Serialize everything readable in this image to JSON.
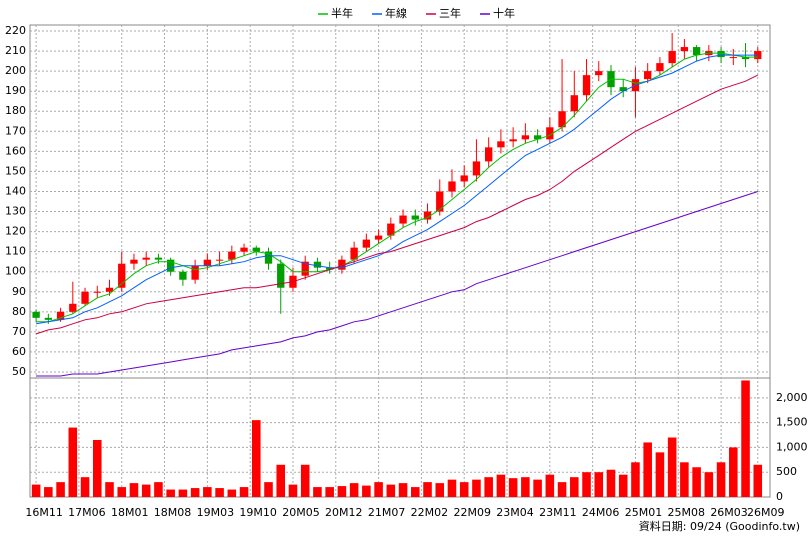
{
  "chart_data": [
    {
      "type": "candlestick",
      "x": [
        0,
        2,
        4,
        6,
        8,
        10,
        12,
        14,
        16,
        18,
        20,
        22,
        24,
        26,
        28,
        30,
        32,
        34,
        36,
        38,
        40,
        42,
        44,
        46,
        48,
        50,
        52,
        54,
        56,
        58,
        60,
        62,
        64,
        66,
        68,
        70,
        72,
        74,
        76,
        78,
        80,
        82,
        84,
        86,
        88,
        90,
        92,
        94,
        96,
        98,
        100,
        102,
        104,
        106,
        108,
        110,
        112,
        114,
        116,
        118
      ],
      "open": [
        80,
        77,
        76,
        80,
        84,
        90,
        90,
        92,
        104,
        106,
        107,
        106,
        100,
        96,
        103,
        106,
        106,
        110,
        112,
        110,
        104,
        92,
        98,
        105,
        102,
        101,
        106,
        112,
        116,
        118,
        124,
        128,
        126,
        130,
        140,
        145,
        148,
        155,
        162,
        165,
        166,
        168,
        166,
        172,
        180,
        188,
        198,
        200,
        192,
        190,
        196,
        200,
        204,
        210,
        212,
        208,
        210,
        207,
        207,
        206
      ],
      "high": [
        81,
        79,
        82,
        95,
        92,
        93,
        96,
        110,
        109,
        110,
        109,
        107,
        101,
        106,
        109,
        110,
        113,
        114,
        113,
        112,
        106,
        102,
        108,
        107,
        105,
        108,
        115,
        119,
        121,
        127,
        131,
        131,
        134,
        146,
        151,
        153,
        166,
        167,
        171,
        172,
        174,
        171,
        177,
        206,
        200,
        206,
        205,
        203,
        196,
        202,
        204,
        207,
        219,
        216,
        213,
        213,
        212,
        211,
        214,
        212
      ],
      "low": [
        75,
        74,
        75,
        79,
        83,
        87,
        88,
        90,
        101,
        103,
        104,
        98,
        93,
        94,
        101,
        103,
        104,
        108,
        108,
        101,
        79,
        90,
        96,
        100,
        99,
        99,
        104,
        110,
        114,
        116,
        122,
        123,
        124,
        128,
        137,
        142,
        145,
        152,
        159,
        162,
        164,
        164,
        164,
        170,
        177,
        185,
        195,
        188,
        187,
        177,
        194,
        198,
        202,
        206,
        205,
        205,
        204,
        203,
        202,
        204
      ],
      "close": [
        77,
        76,
        80,
        84,
        90,
        90,
        92,
        104,
        106,
        107,
        106,
        100,
        96,
        103,
        106,
        106,
        110,
        112,
        110,
        104,
        92,
        98,
        105,
        102,
        101,
        106,
        112,
        116,
        118,
        124,
        128,
        126,
        130,
        140,
        145,
        148,
        155,
        162,
        165,
        166,
        168,
        166,
        172,
        180,
        188,
        198,
        200,
        192,
        190,
        196,
        200,
        204,
        210,
        212,
        208,
        210,
        207,
        207,
        206,
        210
      ],
      "up_color": "#ff0000",
      "down_color": "#00a000",
      "series": [
        {
          "name": "半年",
          "color": "#00c000",
          "values": [
            75,
            75,
            77,
            79,
            83,
            87,
            89,
            94,
            99,
            103,
            105,
            105,
            103,
            101,
            102,
            104,
            106,
            108,
            110,
            109,
            105,
            100,
            100,
            100,
            101,
            103,
            106,
            110,
            114,
            118,
            122,
            125,
            127,
            131,
            136,
            141,
            146,
            152,
            157,
            161,
            164,
            166,
            168,
            172,
            178,
            185,
            192,
            196,
            196,
            194,
            195,
            198,
            202,
            206,
            208,
            209,
            209,
            208,
            207,
            207
          ]
        },
        {
          "name": "年線",
          "color": "#0060ff",
          "values": [
            74,
            75,
            76,
            77,
            80,
            82,
            85,
            88,
            92,
            96,
            99,
            102,
            103,
            103,
            103,
            103,
            104,
            105,
            107,
            108,
            108,
            106,
            104,
            103,
            102,
            102,
            104,
            106,
            108,
            111,
            115,
            118,
            121,
            125,
            129,
            133,
            138,
            143,
            148,
            153,
            158,
            161,
            164,
            167,
            171,
            176,
            181,
            186,
            190,
            193,
            195,
            197,
            199,
            202,
            205,
            207,
            208,
            208,
            208,
            208
          ]
        },
        {
          "name": "三年",
          "color": "#cc0044",
          "values": [
            69,
            71,
            72,
            74,
            76,
            77,
            79,
            80,
            82,
            84,
            85,
            86,
            87,
            88,
            89,
            90,
            91,
            92,
            92,
            93,
            94,
            95,
            97,
            99,
            101,
            103,
            105,
            107,
            109,
            110,
            112,
            114,
            116,
            118,
            120,
            122,
            125,
            127,
            130,
            133,
            136,
            138,
            141,
            145,
            150,
            154,
            158,
            162,
            166,
            170,
            173,
            176,
            179,
            182,
            185,
            188,
            191,
            193,
            195,
            198
          ]
        },
        {
          "name": "十年",
          "color": "#6600cc",
          "values": [
            48,
            48,
            48,
            49,
            49,
            49,
            50,
            51,
            52,
            53,
            54,
            55,
            56,
            57,
            58,
            59,
            61,
            62,
            63,
            64,
            65,
            67,
            68,
            70,
            71,
            73,
            75,
            76,
            78,
            80,
            82,
            84,
            86,
            88,
            90,
            91,
            94,
            96,
            98,
            100,
            102,
            104,
            106,
            108,
            110,
            112,
            114,
            116,
            118,
            120,
            122,
            124,
            126,
            128,
            130,
            132,
            134,
            136,
            138,
            140
          ]
        }
      ],
      "xlim": [
        -1,
        120
      ],
      "xticks": [
        {
          "value": 0,
          "label": "16M11"
        },
        {
          "value": 7,
          "label": "17M06"
        },
        {
          "value": 14,
          "label": "18M01"
        },
        {
          "value": 21,
          "label": "18M08"
        },
        {
          "value": 28,
          "label": "19M03"
        },
        {
          "value": 35,
          "label": "19M10"
        },
        {
          "value": 42,
          "label": "20M05"
        },
        {
          "value": 49,
          "label": "20M12"
        },
        {
          "value": 56,
          "label": "21M07"
        },
        {
          "value": 63,
          "label": "22M02"
        },
        {
          "value": 70,
          "label": "22M09"
        },
        {
          "value": 77,
          "label": "23M04"
        },
        {
          "value": 84,
          "label": "23M11"
        },
        {
          "value": 91,
          "label": "24M06"
        },
        {
          "value": 98,
          "label": "25M01"
        },
        {
          "value": 105,
          "label": "25M08"
        },
        {
          "value": 112,
          "label": "26M03"
        },
        {
          "value": 118,
          "label": "26M09"
        }
      ],
      "ylim": [
        47,
        223
      ],
      "yticks": [
        50,
        60,
        70,
        80,
        90,
        100,
        110,
        120,
        130,
        140,
        150,
        160,
        170,
        180,
        190,
        200,
        210,
        220
      ],
      "grid": true
    },
    {
      "type": "bar",
      "color": "#ff0000",
      "values": [
        250,
        200,
        300,
        1400,
        400,
        1150,
        300,
        200,
        280,
        250,
        300,
        150,
        150,
        180,
        200,
        180,
        150,
        200,
        1550,
        300,
        650,
        250,
        650,
        200,
        200,
        220,
        280,
        230,
        300,
        250,
        280,
        200,
        300,
        280,
        350,
        300,
        350,
        400,
        450,
        380,
        400,
        350,
        450,
        300,
        400,
        500,
        500,
        550,
        450,
        700,
        1100,
        900,
        1200,
        700,
        600,
        500,
        700,
        1000,
        2350,
        650
      ],
      "ylim": [
        0,
        2400
      ],
      "yticks": [
        0,
        {
          "value": 500,
          "label": "500"
        },
        {
          "value": 1000,
          "label": "1,000"
        },
        {
          "value": 1500,
          "label": "1,500"
        },
        {
          "value": 2000,
          "label": "2,000"
        }
      ],
      "grid": true
    }
  ],
  "source": "資料日期: 09/24 (Goodinfo.tw)"
}
